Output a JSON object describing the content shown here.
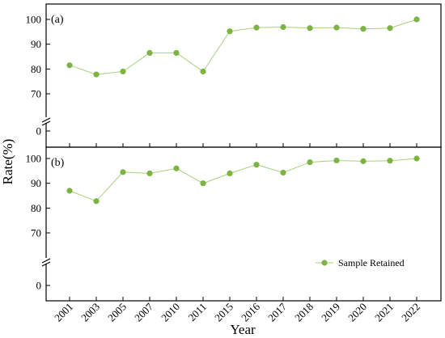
{
  "chart_data": {
    "type": "line",
    "xlabel": "Year",
    "ylabel": "Rate(%)",
    "categories": [
      "2001",
      "2003",
      "2005",
      "2007",
      "2010",
      "2011",
      "2015",
      "2016",
      "2017",
      "2018",
      "2019",
      "2020",
      "2021",
      "2022"
    ],
    "y_ticks": [
      0,
      70,
      80,
      90,
      100
    ],
    "axis_break": "between 0 and 70",
    "ylim": [
      0,
      103
    ],
    "grid": false,
    "legend": {
      "position": "bottom-right",
      "entries": [
        "Sample Retained"
      ]
    },
    "series_color": "#7cb342",
    "line_color": "#a5d17a",
    "panels": [
      {
        "label": "(a)",
        "values": [
          81.5,
          77.8,
          79.0,
          86.5,
          86.5,
          79.0,
          95.2,
          96.7,
          96.9,
          96.5,
          96.7,
          96.2,
          96.5,
          100.0
        ]
      },
      {
        "label": "(b)",
        "values": [
          87.0,
          82.8,
          94.5,
          94.0,
          96.0,
          90.0,
          94.0,
          97.5,
          94.3,
          98.5,
          99.2,
          98.9,
          99.1,
          100.0
        ]
      }
    ],
    "series": [
      {
        "name": "Sample Retained"
      }
    ]
  }
}
